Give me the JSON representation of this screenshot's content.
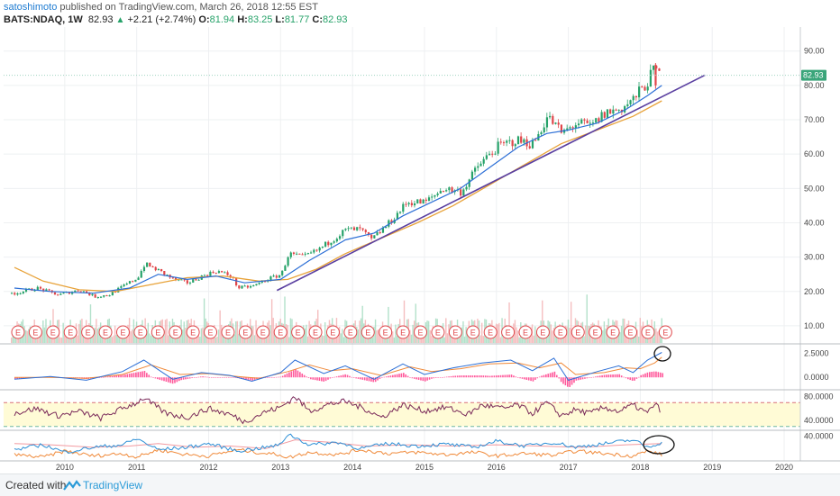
{
  "header": {
    "username": "satoshimoto",
    "published": "published on TradingView.com, March 26, 2018 12:55 EST",
    "symbol": "BATS:NDAQ, 1W",
    "last": "82.93",
    "change": "+2.21 (+2.74%)",
    "o_label": "O:",
    "o_value": "81.94",
    "h_label": "H:",
    "h_value": "83.25",
    "l_label": "L:",
    "l_value": "81.77",
    "c_label": "C:",
    "c_value": "82.93"
  },
  "footer": {
    "created_label": "Created with",
    "brand": "TradingView"
  },
  "colors": {
    "up": "#26a269",
    "down": "#e0464a",
    "ma_fast": "#2c6fd6",
    "ma_slow": "#e8a33a",
    "trendline": "#5a3fa0",
    "rsi_line": "#7a2a5a",
    "rsi_band": "#fffbd6",
    "macd_hist": "#ff3c8a",
    "price_tag": "#3aa57a"
  },
  "chart_data": [
    {
      "type": "candlestick",
      "symbol": "BATS:NDAQ",
      "interval": "1W",
      "x_ticks": [
        "2010",
        "2011",
        "2012",
        "2013",
        "2014",
        "2015",
        "2016",
        "2017",
        "2018",
        "2019",
        "2020"
      ],
      "y_ticks": [
        "90.00",
        "80.00",
        "70.00",
        "60.00",
        "50.00",
        "40.00",
        "30.00",
        "20.00",
        "10.00"
      ],
      "ylim": [
        5,
        97
      ],
      "last_price_label": "82.93",
      "price_path": [
        [
          2009.3,
          19.5
        ],
        [
          2009.6,
          21
        ],
        [
          2009.9,
          19
        ],
        [
          2010.2,
          20.5
        ],
        [
          2010.4,
          18.5
        ],
        [
          2010.6,
          19
        ],
        [
          2010.8,
          21.5
        ],
        [
          2011.0,
          24
        ],
        [
          2011.1,
          28
        ],
        [
          2011.3,
          26
        ],
        [
          2011.5,
          23.5
        ],
        [
          2011.7,
          22.5
        ],
        [
          2011.9,
          24.5
        ],
        [
          2012.1,
          26
        ],
        [
          2012.3,
          24.5
        ],
        [
          2012.4,
          21
        ],
        [
          2012.6,
          21.5
        ],
        [
          2012.8,
          23.5
        ],
        [
          2013.0,
          25
        ],
        [
          2013.1,
          31
        ],
        [
          2013.3,
          30
        ],
        [
          2013.5,
          32
        ],
        [
          2013.7,
          35
        ],
        [
          2013.9,
          38
        ],
        [
          2014.1,
          38
        ],
        [
          2014.25,
          35
        ],
        [
          2014.5,
          40
        ],
        [
          2014.75,
          46
        ],
        [
          2015.0,
          46
        ],
        [
          2015.25,
          50
        ],
        [
          2015.5,
          49
        ],
        [
          2015.75,
          57
        ],
        [
          2016.0,
          62
        ],
        [
          2016.25,
          64
        ],
        [
          2016.5,
          63
        ],
        [
          2016.7,
          71
        ],
        [
          2016.9,
          66
        ],
        [
          2017.1,
          69
        ],
        [
          2017.3,
          68
        ],
        [
          2017.5,
          72
        ],
        [
          2017.7,
          73
        ],
        [
          2017.9,
          76
        ],
        [
          2018.05,
          80
        ],
        [
          2018.2,
          85
        ],
        [
          2018.25,
          82.93
        ]
      ],
      "ma_fast_path": [
        [
          2009.3,
          21
        ],
        [
          2009.8,
          20
        ],
        [
          2010.4,
          19.5
        ],
        [
          2010.9,
          21
        ],
        [
          2011.3,
          25
        ],
        [
          2011.7,
          23.5
        ],
        [
          2012.1,
          24.5
        ],
        [
          2012.5,
          22.5
        ],
        [
          2013.0,
          23.5
        ],
        [
          2013.4,
          29
        ],
        [
          2013.9,
          35
        ],
        [
          2014.3,
          37
        ],
        [
          2014.7,
          42
        ],
        [
          2015.1,
          46
        ],
        [
          2015.5,
          50
        ],
        [
          2015.9,
          56
        ],
        [
          2016.3,
          62
        ],
        [
          2016.7,
          66
        ],
        [
          2017.0,
          67
        ],
        [
          2017.4,
          69
        ],
        [
          2017.8,
          73
        ],
        [
          2018.1,
          77
        ],
        [
          2018.3,
          80
        ]
      ],
      "ma_slow_path": [
        [
          2009.3,
          27
        ],
        [
          2009.7,
          23
        ],
        [
          2010.2,
          20.5
        ],
        [
          2010.7,
          20
        ],
        [
          2011.2,
          22
        ],
        [
          2011.7,
          24
        ],
        [
          2012.2,
          24.5
        ],
        [
          2012.7,
          23
        ],
        [
          2013.1,
          23.5
        ],
        [
          2013.5,
          26.5
        ],
        [
          2013.9,
          31
        ],
        [
          2014.4,
          35.5
        ],
        [
          2014.9,
          40
        ],
        [
          2015.4,
          45
        ],
        [
          2015.9,
          51
        ],
        [
          2016.4,
          57
        ],
        [
          2016.9,
          63
        ],
        [
          2017.4,
          67
        ],
        [
          2017.9,
          71
        ],
        [
          2018.3,
          75.5
        ]
      ],
      "trendline": [
        [
          2012.95,
          20.3
        ],
        [
          2018.9,
          83
        ]
      ],
      "volume": {
        "axis_min_price_units": 5,
        "bar_region_top_price": 21
      },
      "earnings_markers": {
        "label": "E",
        "first_x": 2009.35,
        "last_x": 2018.35,
        "count": 38
      }
    },
    {
      "type": "line",
      "indicator": "MACD",
      "y_ticks": [
        "2.5000",
        "0.0000"
      ],
      "ylim": [
        -1.2,
        3.4
      ],
      "macd_path": [
        [
          2009.3,
          -0.2
        ],
        [
          2009.8,
          0.1
        ],
        [
          2010.3,
          -0.3
        ],
        [
          2010.8,
          0.6
        ],
        [
          2011.1,
          1.8
        ],
        [
          2011.5,
          -0.2
        ],
        [
          2011.9,
          0.5
        ],
        [
          2012.3,
          0.2
        ],
        [
          2012.6,
          -0.4
        ],
        [
          2013.0,
          0.5
        ],
        [
          2013.2,
          1.8
        ],
        [
          2013.6,
          0.4
        ],
        [
          2013.9,
          1.2
        ],
        [
          2014.3,
          -0.2
        ],
        [
          2014.7,
          1.4
        ],
        [
          2015.0,
          0.3
        ],
        [
          2015.4,
          1.0
        ],
        [
          2015.8,
          1.5
        ],
        [
          2016.2,
          1.8
        ],
        [
          2016.5,
          0.7
        ],
        [
          2016.8,
          2.0
        ],
        [
          2017.0,
          -0.3
        ],
        [
          2017.4,
          0.6
        ],
        [
          2017.7,
          1.2
        ],
        [
          2017.9,
          0.5
        ],
        [
          2018.1,
          1.8
        ],
        [
          2018.3,
          2.6
        ]
      ],
      "signal_path": [
        [
          2009.3,
          0.0
        ],
        [
          2009.8,
          0.0
        ],
        [
          2010.3,
          -0.1
        ],
        [
          2010.8,
          0.3
        ],
        [
          2011.2,
          1.3
        ],
        [
          2011.6,
          0.3
        ],
        [
          2012.0,
          0.4
        ],
        [
          2012.4,
          0.1
        ],
        [
          2012.7,
          -0.1
        ],
        [
          2013.1,
          0.6
        ],
        [
          2013.4,
          1.3
        ],
        [
          2013.7,
          0.7
        ],
        [
          2014.0,
          0.9
        ],
        [
          2014.4,
          0.2
        ],
        [
          2014.8,
          1.1
        ],
        [
          2015.1,
          0.6
        ],
        [
          2015.5,
          0.9
        ],
        [
          2015.9,
          1.4
        ],
        [
          2016.3,
          1.5
        ],
        [
          2016.6,
          1.0
        ],
        [
          2016.9,
          1.5
        ],
        [
          2017.1,
          0.3
        ],
        [
          2017.5,
          0.5
        ],
        [
          2017.8,
          1.0
        ],
        [
          2018.0,
          0.9
        ],
        [
          2018.2,
          1.5
        ],
        [
          2018.3,
          2.1
        ]
      ]
    },
    {
      "type": "line",
      "indicator": "RSI",
      "y_ticks": [
        "80.0000",
        "40.0000"
      ],
      "ylim": [
        25,
        90
      ],
      "band": [
        30,
        70
      ],
      "rsi_path": [
        [
          2009.3,
          52
        ],
        [
          2009.6,
          60
        ],
        [
          2009.9,
          48
        ],
        [
          2010.2,
          55
        ],
        [
          2010.5,
          44
        ],
        [
          2010.8,
          60
        ],
        [
          2011.0,
          70
        ],
        [
          2011.1,
          78
        ],
        [
          2011.4,
          52
        ],
        [
          2011.7,
          45
        ],
        [
          2012.0,
          60
        ],
        [
          2012.3,
          50
        ],
        [
          2012.5,
          38
        ],
        [
          2012.8,
          55
        ],
        [
          2013.0,
          62
        ],
        [
          2013.2,
          80
        ],
        [
          2013.4,
          56
        ],
        [
          2013.7,
          68
        ],
        [
          2013.9,
          72
        ],
        [
          2014.2,
          58
        ],
        [
          2014.4,
          45
        ],
        [
          2014.7,
          66
        ],
        [
          2015.0,
          56
        ],
        [
          2015.3,
          62
        ],
        [
          2015.6,
          50
        ],
        [
          2015.8,
          66
        ],
        [
          2016.1,
          60
        ],
        [
          2016.3,
          66
        ],
        [
          2016.5,
          52
        ],
        [
          2016.7,
          70
        ],
        [
          2016.9,
          48
        ],
        [
          2017.1,
          58
        ],
        [
          2017.3,
          52
        ],
        [
          2017.5,
          62
        ],
        [
          2017.7,
          55
        ],
        [
          2017.9,
          66
        ],
        [
          2018.1,
          52
        ],
        [
          2018.2,
          68
        ],
        [
          2018.3,
          55
        ]
      ]
    },
    {
      "type": "line",
      "indicator": "oscillator",
      "y_ticks": [
        "40.0000"
      ],
      "ylim": [
        0,
        48
      ],
      "line_blue": [
        [
          2009.3,
          18
        ],
        [
          2009.7,
          26
        ],
        [
          2010.0,
          14
        ],
        [
          2010.4,
          22
        ],
        [
          2010.8,
          26
        ],
        [
          2011.0,
          36
        ],
        [
          2011.3,
          18
        ],
        [
          2011.7,
          22
        ],
        [
          2012.0,
          28
        ],
        [
          2012.4,
          16
        ],
        [
          2012.8,
          22
        ],
        [
          2013.0,
          26
        ],
        [
          2013.1,
          44
        ],
        [
          2013.4,
          26
        ],
        [
          2013.8,
          30
        ],
        [
          2014.1,
          20
        ],
        [
          2014.5,
          28
        ],
        [
          2014.9,
          24
        ],
        [
          2015.3,
          27
        ],
        [
          2015.7,
          22
        ],
        [
          2016.0,
          32
        ],
        [
          2016.4,
          24
        ],
        [
          2016.8,
          30
        ],
        [
          2017.1,
          22
        ],
        [
          2017.5,
          28
        ],
        [
          2017.9,
          34
        ],
        [
          2018.1,
          22
        ],
        [
          2018.3,
          30
        ]
      ],
      "line_orange": [
        [
          2009.3,
          10
        ],
        [
          2009.7,
          6
        ],
        [
          2010.0,
          16
        ],
        [
          2010.4,
          8
        ],
        [
          2010.8,
          12
        ],
        [
          2011.0,
          6
        ],
        [
          2011.3,
          18
        ],
        [
          2011.7,
          10
        ],
        [
          2012.0,
          8
        ],
        [
          2012.4,
          18
        ],
        [
          2012.8,
          12
        ],
        [
          2013.0,
          10
        ],
        [
          2013.1,
          5
        ],
        [
          2013.4,
          14
        ],
        [
          2013.8,
          10
        ],
        [
          2014.1,
          18
        ],
        [
          2014.5,
          12
        ],
        [
          2014.9,
          14
        ],
        [
          2015.3,
          10
        ],
        [
          2015.7,
          14
        ],
        [
          2016.0,
          8
        ],
        [
          2016.4,
          12
        ],
        [
          2016.8,
          9
        ],
        [
          2017.1,
          16
        ],
        [
          2017.5,
          12
        ],
        [
          2017.9,
          8
        ],
        [
          2018.1,
          16
        ],
        [
          2018.3,
          10
        ]
      ],
      "line_pink": [
        [
          2009.3,
          28
        ],
        [
          2009.8,
          26
        ],
        [
          2010.4,
          22
        ],
        [
          2010.9,
          24
        ],
        [
          2011.3,
          28
        ],
        [
          2011.8,
          22
        ],
        [
          2012.3,
          24
        ],
        [
          2012.8,
          20
        ],
        [
          2013.2,
          34
        ],
        [
          2013.7,
          30
        ],
        [
          2014.2,
          24
        ],
        [
          2014.8,
          26
        ],
        [
          2015.4,
          24
        ],
        [
          2016.0,
          26
        ],
        [
          2016.6,
          24
        ],
        [
          2017.2,
          22
        ],
        [
          2017.8,
          26
        ],
        [
          2018.3,
          28
        ]
      ]
    }
  ]
}
